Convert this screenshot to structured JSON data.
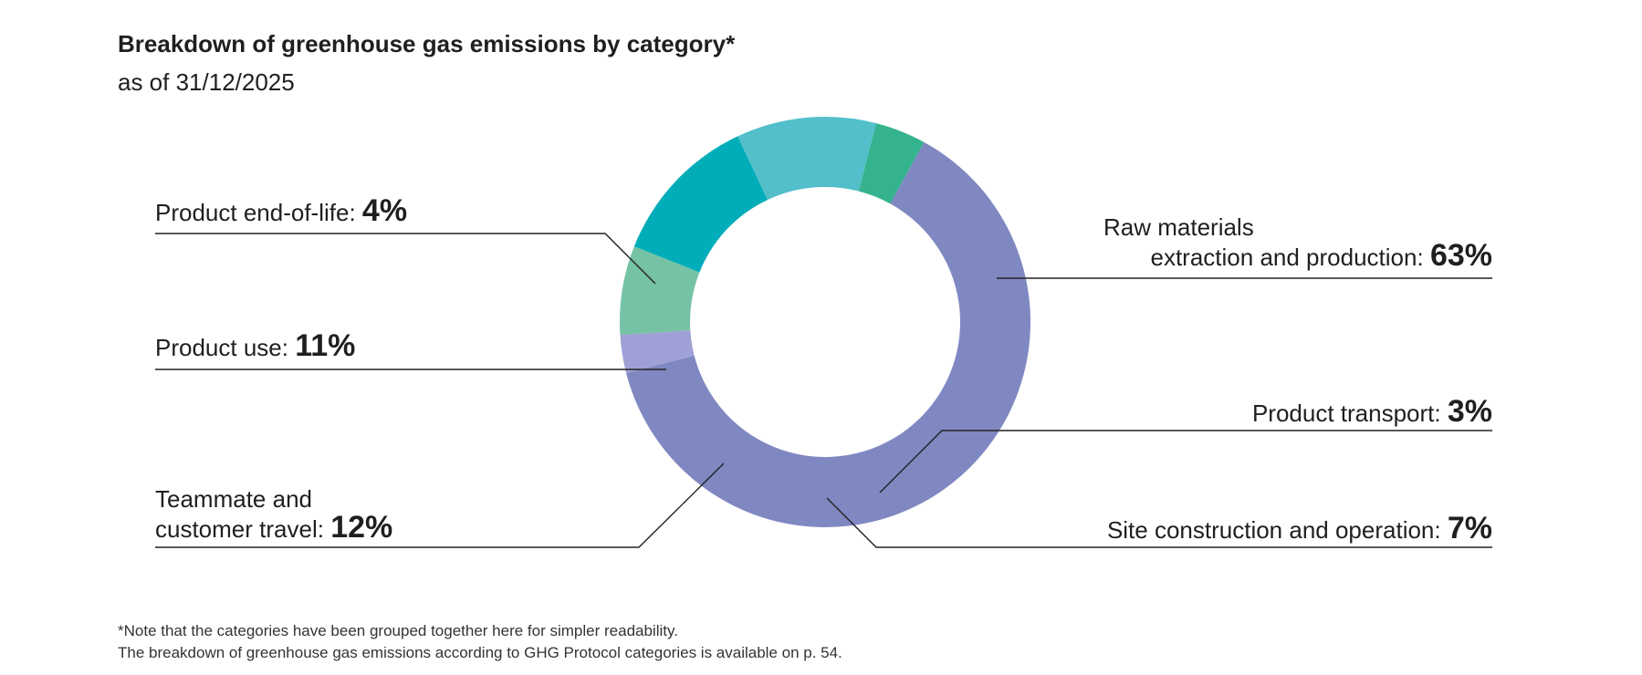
{
  "chart_data": {
    "type": "pie",
    "title": "Breakdown of greenhouse gas emissions by category*",
    "subtitle": "as of 31/12/2025",
    "unit": "%",
    "slices": [
      {
        "label_lines": [
          "Raw materials",
          "extraction and production:"
        ],
        "value": 63,
        "value_text": "63%",
        "color": "#8088c2"
      },
      {
        "label_lines": [
          "Product transport:"
        ],
        "value": 3,
        "value_text": "3%",
        "color": "#9fa1d6"
      },
      {
        "label_lines": [
          "Site construction and operation:"
        ],
        "value": 7,
        "value_text": "7%",
        "color": "#76c2a5"
      },
      {
        "label_lines": [
          "Teammate and",
          "customer travel:"
        ],
        "value": 12,
        "value_text": "12%",
        "color": "#00adb8"
      },
      {
        "label_lines": [
          "Product use:"
        ],
        "value": 11,
        "value_text": "11%",
        "color": "#52bfca"
      },
      {
        "label_lines": [
          "Product end-of-life:"
        ],
        "value": 4,
        "value_text": "4%",
        "color": "#35b38e"
      }
    ],
    "footnote": [
      "*Note that the categories have been grouped together here for simpler readability.",
      "The breakdown of greenhouse gas emissions according to GHG Protocol categories is available on p. 54."
    ]
  }
}
